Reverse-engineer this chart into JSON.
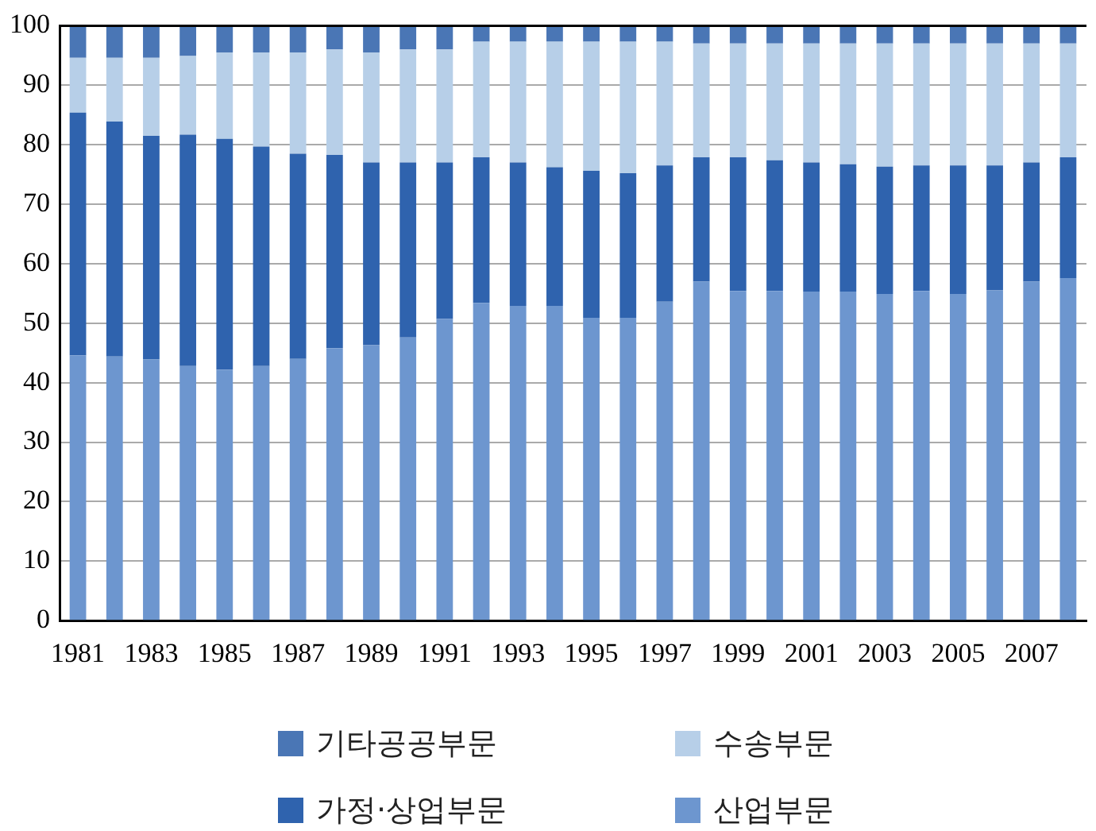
{
  "chart_data": {
    "type": "bar",
    "stacked": true,
    "categories": [
      "1981",
      null,
      "1983",
      null,
      "1985",
      null,
      "1987",
      null,
      "1989",
      null,
      "1991",
      null,
      "1993",
      null,
      "1995",
      null,
      "1997",
      null,
      "1999",
      null,
      "2001",
      null,
      "2003",
      null,
      "2005",
      null,
      "2007",
      null
    ],
    "series": [
      {
        "name": "산업부문",
        "color": "#6d96cf",
        "values": [
          44.6,
          44.4,
          43.9,
          42.8,
          42.2,
          42.8,
          44.0,
          45.8,
          46.3,
          47.6,
          50.7,
          53.4,
          52.9,
          52.9,
          50.9,
          50.9,
          53.6,
          57.0,
          55.4,
          55.4,
          55.3,
          55.3,
          54.9,
          55.4,
          54.9,
          55.5,
          57.0,
          57.6
        ]
      },
      {
        "name": "가정·상업부문",
        "color": "#2f63ae",
        "values": [
          40.8,
          39.5,
          37.6,
          38.9,
          38.8,
          36.9,
          34.5,
          32.5,
          30.7,
          29.4,
          26.3,
          24.5,
          24.1,
          23.3,
          24.7,
          24.3,
          22.9,
          20.9,
          22.5,
          22.0,
          21.7,
          21.4,
          21.4,
          21.1,
          21.6,
          21.0,
          20.0,
          20.3
        ]
      },
      {
        "name": "수송부문",
        "color": "#b7cfe8",
        "values": [
          9.2,
          10.7,
          13.1,
          13.2,
          14.5,
          15.8,
          17.0,
          17.7,
          18.5,
          19.0,
          19.0,
          19.4,
          20.3,
          21.1,
          21.7,
          22.1,
          20.8,
          19.1,
          19.1,
          19.6,
          20.0,
          20.3,
          20.7,
          20.5,
          20.5,
          20.5,
          20.0,
          19.1
        ]
      },
      {
        "name": "기타공공부문",
        "color": "#4a76b5",
        "values": [
          5.4,
          5.4,
          5.4,
          5.1,
          4.5,
          4.5,
          4.5,
          4.0,
          4.5,
          4.0,
          4.0,
          2.7,
          2.7,
          2.7,
          2.7,
          2.7,
          2.7,
          3.0,
          3.0,
          3.0,
          3.0,
          3.0,
          3.0,
          3.0,
          3.0,
          3.0,
          3.0,
          3.0
        ]
      }
    ],
    "ylim": [
      0,
      100
    ],
    "yticks": [
      0,
      10,
      20,
      30,
      40,
      50,
      60,
      70,
      80,
      90,
      100
    ],
    "grid": "y",
    "legend": "bottom"
  }
}
